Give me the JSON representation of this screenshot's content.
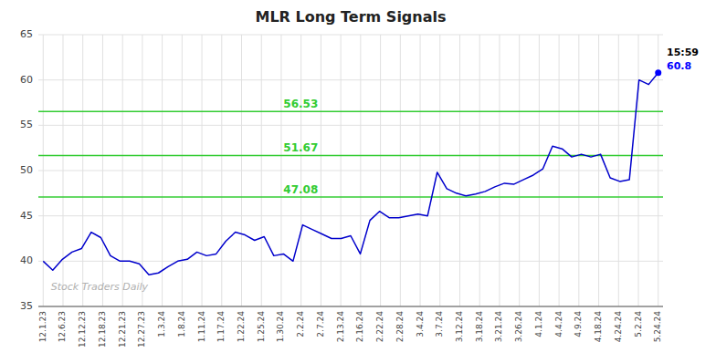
{
  "chart_data": {
    "type": "line",
    "title": "MLR Long Term Signals",
    "color": "#0000cc",
    "values": [
      40.0,
      39.0,
      40.2,
      41.0,
      41.4,
      43.2,
      42.6,
      40.6,
      40.0,
      40.0,
      39.7,
      38.5,
      38.7,
      39.4,
      40.0,
      40.2,
      41.0,
      40.6,
      40.8,
      42.2,
      43.2,
      42.9,
      42.3,
      42.7,
      40.6,
      40.8,
      40.0,
      44.0,
      43.5,
      43.0,
      42.5,
      42.5,
      42.8,
      40.8,
      44.5,
      45.5,
      44.8,
      44.8,
      45.0,
      45.2,
      45.0,
      49.8,
      48.0,
      47.5,
      47.2,
      47.4,
      47.7,
      48.2,
      48.6,
      48.5,
      49.0,
      49.5,
      50.2,
      52.7,
      52.4,
      51.5,
      51.8,
      51.5,
      51.8,
      49.2,
      48.8,
      49.0,
      60.0,
      59.5,
      60.8
    ],
    "xlim": [
      -0.5,
      64.5
    ],
    "xticks": [
      {
        "value": 0,
        "label": "12.1.23"
      },
      {
        "value": 2.064516,
        "label": "12.6.23"
      },
      {
        "value": 4.129032,
        "label": "12.12.23"
      },
      {
        "value": 6.193548,
        "label": "12.18.23"
      },
      {
        "value": 8.258065,
        "label": "12.21.23"
      },
      {
        "value": 10.322581,
        "label": "12.27.23"
      },
      {
        "value": 12.387097,
        "label": "1.3.24"
      },
      {
        "value": 14.451613,
        "label": "1.8.24"
      },
      {
        "value": 16.516129,
        "label": "1.11.24"
      },
      {
        "value": 18.580645,
        "label": "1.17.24"
      },
      {
        "value": 20.645161,
        "label": "1.22.24"
      },
      {
        "value": 22.709677,
        "label": "1.25.24"
      },
      {
        "value": 24.774194,
        "label": "1.30.24"
      },
      {
        "value": 26.83871,
        "label": "2.2.24"
      },
      {
        "value": 28.903226,
        "label": "2.7.24"
      },
      {
        "value": 30.967742,
        "label": "2.13.24"
      },
      {
        "value": 33.032258,
        "label": "2.16.24"
      },
      {
        "value": 35.096774,
        "label": "2.22.24"
      },
      {
        "value": 37.16129,
        "label": "2.28.24"
      },
      {
        "value": 39.225806,
        "label": "3.4.24"
      },
      {
        "value": 41.290323,
        "label": "3.7.24"
      },
      {
        "value": 43.354839,
        "label": "3.12.24"
      },
      {
        "value": 45.419355,
        "label": "3.18.24"
      },
      {
        "value": 47.483871,
        "label": "3.21.24"
      },
      {
        "value": 49.548387,
        "label": "3.26.24"
      },
      {
        "value": 51.612903,
        "label": "4.1.24"
      },
      {
        "value": 53.677419,
        "label": "4.4.24"
      },
      {
        "value": 55.741935,
        "label": "4.9.24"
      },
      {
        "value": 57.806452,
        "label": "4.18.24"
      },
      {
        "value": 59.870968,
        "label": "4.24.24"
      },
      {
        "value": 61.935484,
        "label": "5.2.24"
      },
      {
        "value": 64,
        "label": "5.24.24"
      }
    ],
    "ylim": [
      35,
      65
    ],
    "yticks": [
      35,
      40,
      45,
      50,
      55,
      60,
      65
    ],
    "grid": true,
    "reference_lines": [
      {
        "value": 47.08,
        "label": "47.08",
        "color": "#33cc33"
      },
      {
        "value": 51.67,
        "label": "51.67",
        "color": "#33cc33"
      },
      {
        "value": 56.53,
        "label": "56.53",
        "color": "#33cc33"
      }
    ],
    "annotations": [
      {
        "text": "15:59"
      },
      {
        "text": "60.8",
        "color": "#0000ff"
      },
      {
        "text": "Stock Traders Daily"
      }
    ]
  }
}
